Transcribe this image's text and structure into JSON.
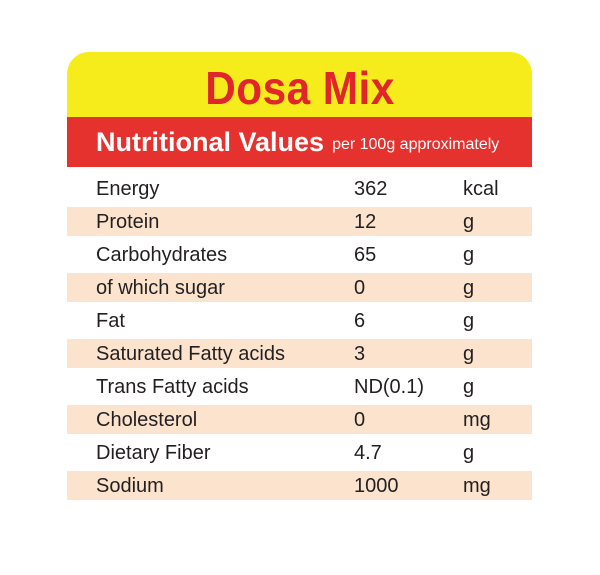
{
  "title": "Dosa Mix",
  "subtitle": {
    "main": "Nutritional Values",
    "note": "per 100g approximately"
  },
  "colors": {
    "title_band": "#f7ec1b",
    "title_text": "#e1262b",
    "subtitle_band": "#e6322e",
    "row_shade": "#fbe3cd"
  },
  "rows": [
    {
      "name": "Energy",
      "value": "362",
      "unit": "kcal"
    },
    {
      "name": "Protein",
      "value": "12",
      "unit": "g"
    },
    {
      "name": "Carbohydrates",
      "value": "65",
      "unit": "g"
    },
    {
      "name": "of which sugar",
      "value": "0",
      "unit": "g"
    },
    {
      "name": "Fat",
      "value": "6",
      "unit": "g"
    },
    {
      "name": "Saturated Fatty acids",
      "value": "3",
      "unit": "g"
    },
    {
      "name": "Trans Fatty acids",
      "value": "ND(0.1)",
      "unit": "g"
    },
    {
      "name": "Cholesterol",
      "value": "0",
      "unit": "mg"
    },
    {
      "name": "Dietary Fiber",
      "value": "4.7",
      "unit": "g"
    },
    {
      "name": "Sodium",
      "value": "1000",
      "unit": "mg"
    }
  ]
}
